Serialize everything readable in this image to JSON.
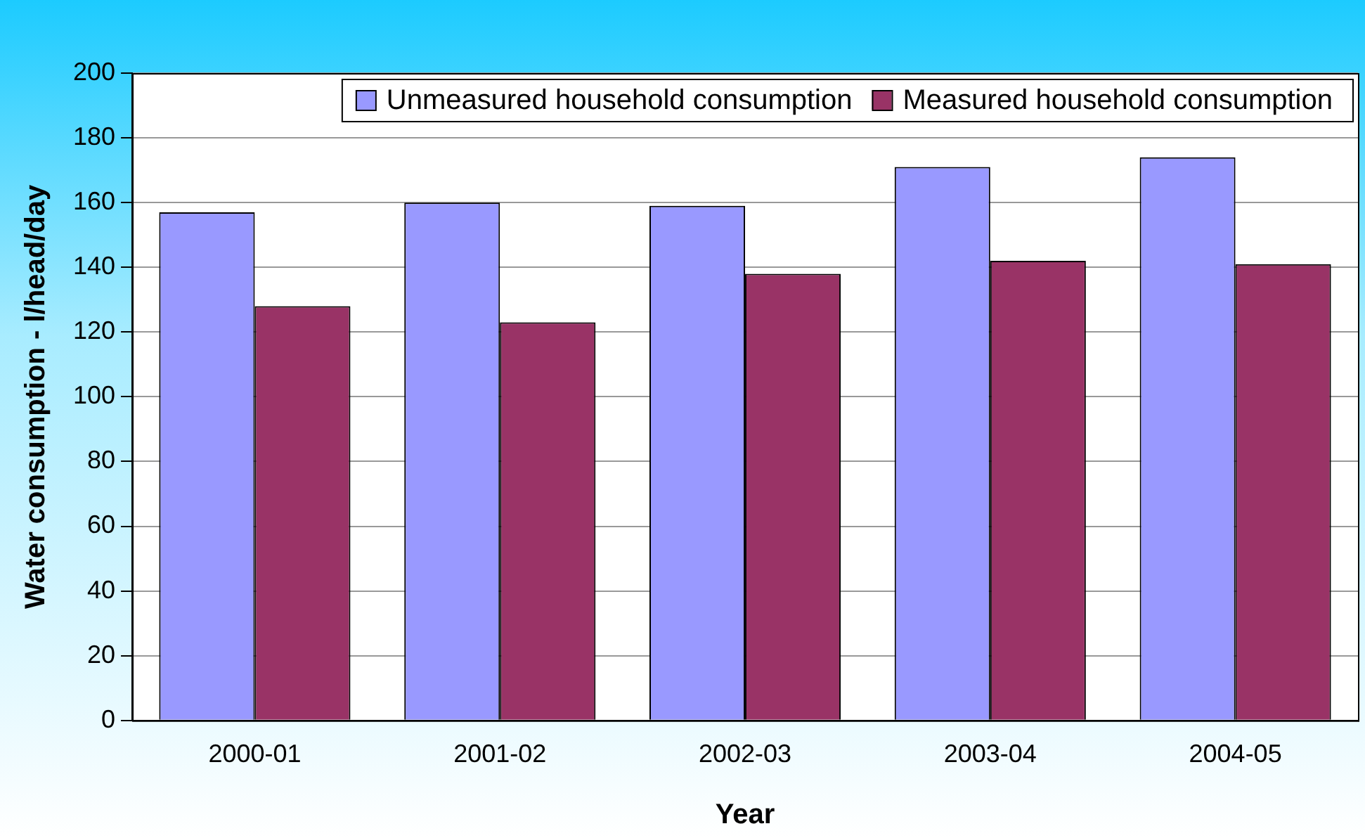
{
  "chart_data": {
    "type": "bar",
    "xlabel": "Year",
    "ylabel": "Water consumption - l/head/day",
    "categories": [
      "2000-01",
      "2001-02",
      "2002-03",
      "2003-04",
      "2004-05"
    ],
    "series": [
      {
        "name": "Unmeasured household consumption",
        "color": "#9999ff",
        "values": [
          157,
          160,
          159,
          171,
          174
        ]
      },
      {
        "name": "Measured household consumption",
        "color": "#993366",
        "values": [
          128,
          123,
          138,
          142,
          141
        ]
      }
    ],
    "ylim": [
      0,
      200
    ],
    "yticks": [
      0,
      20,
      40,
      60,
      80,
      100,
      120,
      140,
      160,
      180,
      200
    ],
    "grid": "y",
    "legend": "top"
  }
}
